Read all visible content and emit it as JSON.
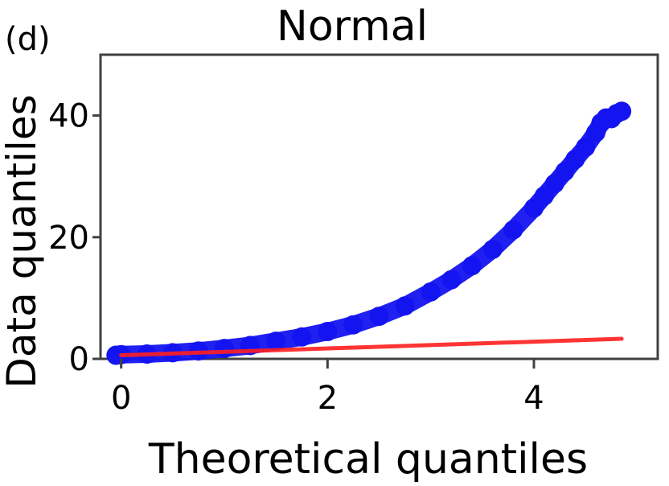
{
  "panel_label": "(d)",
  "chart_data": {
    "type": "scatter",
    "title": "Normal",
    "xlabel": "Theoretical quantiles",
    "ylabel": "Data quantiles",
    "xlim": [
      -0.2,
      5.2
    ],
    "ylim": [
      0,
      50
    ],
    "xticks": [
      0,
      2,
      4
    ],
    "yticks": [
      0,
      20,
      40
    ],
    "grid": false,
    "legend": "none",
    "series": [
      {
        "kind": "points",
        "color": "#1414f0",
        "x": [
          -0.05,
          0.0,
          0.25,
          0.5,
          0.75,
          1.0,
          1.25,
          1.5,
          1.75,
          2.0,
          2.25,
          2.5,
          2.75,
          3.0,
          3.2,
          3.4,
          3.6,
          3.8,
          4.0,
          4.1,
          4.2,
          4.3,
          4.4,
          4.5,
          4.6,
          4.65,
          4.7,
          4.75,
          4.8,
          4.85
        ],
        "y": [
          0.6,
          0.7,
          0.8,
          1.0,
          1.3,
          1.7,
          2.2,
          2.9,
          3.6,
          4.5,
          5.6,
          7.0,
          8.7,
          11.0,
          13.0,
          15.3,
          18.0,
          21.2,
          24.8,
          26.8,
          28.8,
          30.8,
          32.8,
          34.8,
          37.2,
          38.8,
          39.6,
          39.5,
          40.3,
          40.7
        ]
      },
      {
        "kind": "line",
        "color": "#ff1f1f",
        "x": [
          0.0,
          4.85
        ],
        "y": [
          0.6,
          3.3
        ]
      }
    ]
  }
}
